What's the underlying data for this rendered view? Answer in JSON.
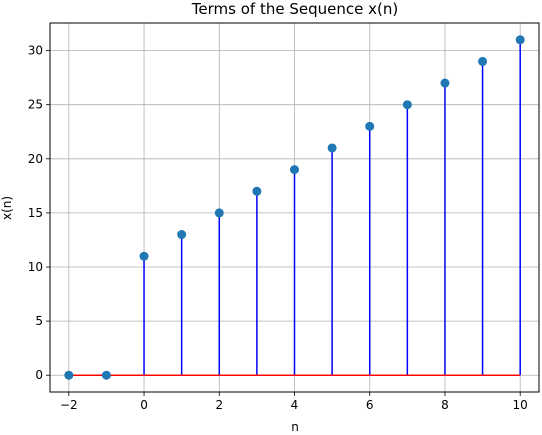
{
  "chart_data": {
    "type": "stem",
    "title": "Terms of the Sequence x(n)",
    "xlabel": "n",
    "ylabel": "x(n)",
    "xlim": [
      -2.5,
      10.5
    ],
    "ylim": [
      -1.55,
      32.55
    ],
    "xticks": [
      -2,
      0,
      2,
      4,
      6,
      8,
      10
    ],
    "xtick_labels": [
      "−2",
      "0",
      "2",
      "4",
      "6",
      "8",
      "10"
    ],
    "yticks": [
      0,
      5,
      10,
      15,
      20,
      25,
      30
    ],
    "ytick_labels": [
      "0",
      "5",
      "10",
      "15",
      "20",
      "25",
      "30"
    ],
    "grid": true,
    "x": [
      -2,
      -1,
      0,
      1,
      2,
      3,
      4,
      5,
      6,
      7,
      8,
      9,
      10
    ],
    "y": [
      0,
      0,
      11,
      13,
      15,
      17,
      19,
      21,
      23,
      25,
      27,
      29,
      31
    ],
    "colors": {
      "marker": "#1f77b4",
      "stem": "#0000ff",
      "baseline": "#ff0000",
      "grid": "#b0b0b0"
    }
  }
}
